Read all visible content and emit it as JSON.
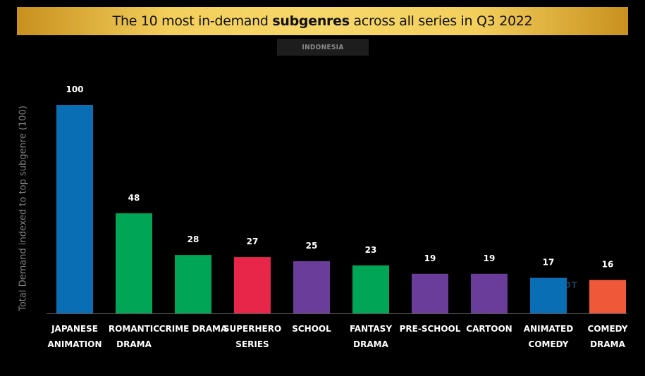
{
  "title_plain": "The 10 most in-demand ",
  "title_bold": "subgenres",
  "title_rest": " across all series in Q3 2022",
  "region": "INDONESIA",
  "watermark": "PARROT",
  "chart_data": {
    "type": "bar",
    "title": "The 10 most in-demand subgenres across all series in Q3 2022",
    "ylabel": "Total Demand indexed to top subgenre (100)",
    "ylim": [
      0,
      100
    ],
    "grid": false,
    "categories": [
      [
        "JAPANESE",
        "ANIMATION"
      ],
      [
        "ROMANTIC",
        "DRAMA"
      ],
      [
        "CRIME DRAMA"
      ],
      [
        "SUPERHERO",
        "SERIES"
      ],
      [
        "SCHOOL"
      ],
      [
        "FANTASY",
        "DRAMA"
      ],
      [
        "PRE-SCHOOL"
      ],
      [
        "CARTOON"
      ],
      [
        "ANIMATED",
        "COMEDY"
      ],
      [
        "COMEDY",
        "DRAMA"
      ]
    ],
    "values": [
      100,
      48,
      28,
      27,
      25,
      23,
      19,
      19,
      17,
      16
    ],
    "colors": [
      "#0a6eb4",
      "#00a555",
      "#00a555",
      "#e8264a",
      "#6a3d9a",
      "#00a555",
      "#6a3d9a",
      "#6a3d9a",
      "#0a6eb4",
      "#f0583a"
    ]
  }
}
